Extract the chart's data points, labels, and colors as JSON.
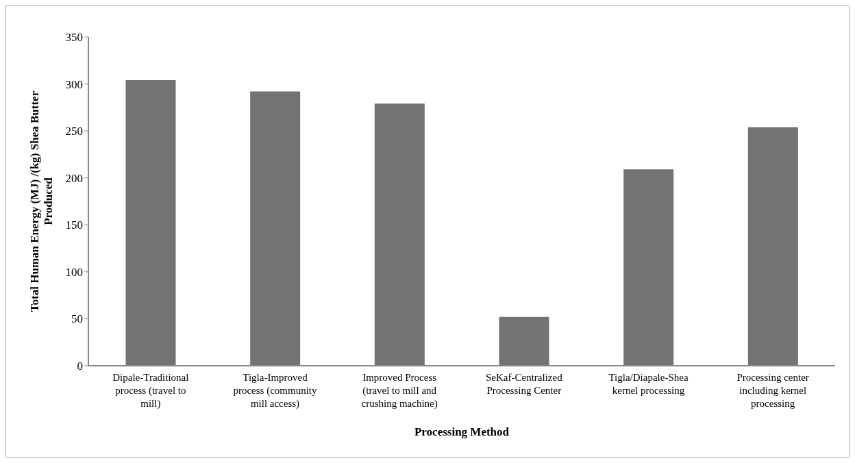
{
  "chart_data": {
    "type": "bar",
    "categories": [
      "Dipale-Traditional process (travel to mill)",
      "Tigla-Improved process (community mill access)",
      "Improved Process (travel to mill and crushing machine)",
      "SeKaf-Centralized Processing Center",
      "Tigla/Diapale-Shea kernel processing",
      "Processing center including kernel processing"
    ],
    "values": [
      304,
      292,
      279,
      52,
      209,
      254
    ],
    "color": "#737373",
    "xlabel": "Processing Method",
    "ylabel": "Total Human Energy (MJ) /(kg) Shea Butter Produced",
    "ylim": [
      0,
      350
    ],
    "yticks": [
      0,
      50,
      100,
      150,
      200,
      250,
      300,
      350
    ],
    "grid": false,
    "legend": false
  }
}
